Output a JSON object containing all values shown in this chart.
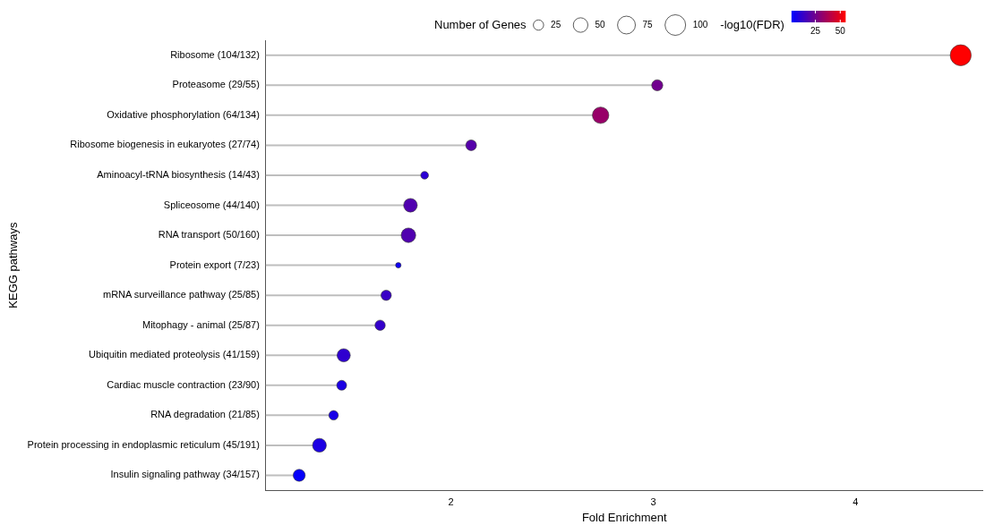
{
  "chart_data": {
    "type": "lollipop",
    "orientation": "horizontal",
    "xlabel": "Fold Enrichment",
    "ylabel": "KEGG pathways",
    "legend_title": "Number of Genes",
    "clabel": "-log10(FDR)",
    "categories": [
      "Ribosome (104/132)",
      "Proteasome (29/55)",
      "Oxidative phosphorylation (64/134)",
      "Ribosome biogenesis in eukaryotes (27/74)",
      "Aminoacyl-tRNA biosynthesis (14/43)",
      "Spliceosome (44/140)",
      "RNA transport (50/160)",
      "Protein export (7/23)",
      "mRNA surveillance pathway (25/85)",
      "Mitophagy - animal (25/87)",
      "Ubiquitin mediated proteolysis (41/159)",
      "Cardiac muscle contraction (23/90)",
      "RNA degradation (21/85)",
      "Protein processing in endoplasmic reticulum (45/191)",
      "Insulin signaling pathway (34/157)"
    ],
    "series": [
      {
        "values": [
          4.52,
          3.02,
          2.74,
          2.1,
          1.87,
          1.8,
          1.79,
          1.74,
          1.68,
          1.65,
          1.47,
          1.46,
          1.42,
          1.35,
          1.25
        ],
        "sizes": [
          104,
          29,
          64,
          27,
          14,
          44,
          50,
          7,
          25,
          25,
          41,
          23,
          21,
          45,
          34
        ],
        "cvalues": [
          55,
          25,
          33,
          19,
          10,
          18,
          18,
          4,
          13,
          12,
          11,
          7,
          6,
          7,
          2
        ]
      }
    ],
    "size_legend": [
      25,
      50,
      75,
      100
    ],
    "clim": [
      1,
      55
    ],
    "cticks": [
      25,
      50
    ],
    "xlim": [
      1.085,
      4.63
    ],
    "xticks": [
      2,
      3,
      4
    ],
    "grid": false,
    "marker": "circle"
  }
}
